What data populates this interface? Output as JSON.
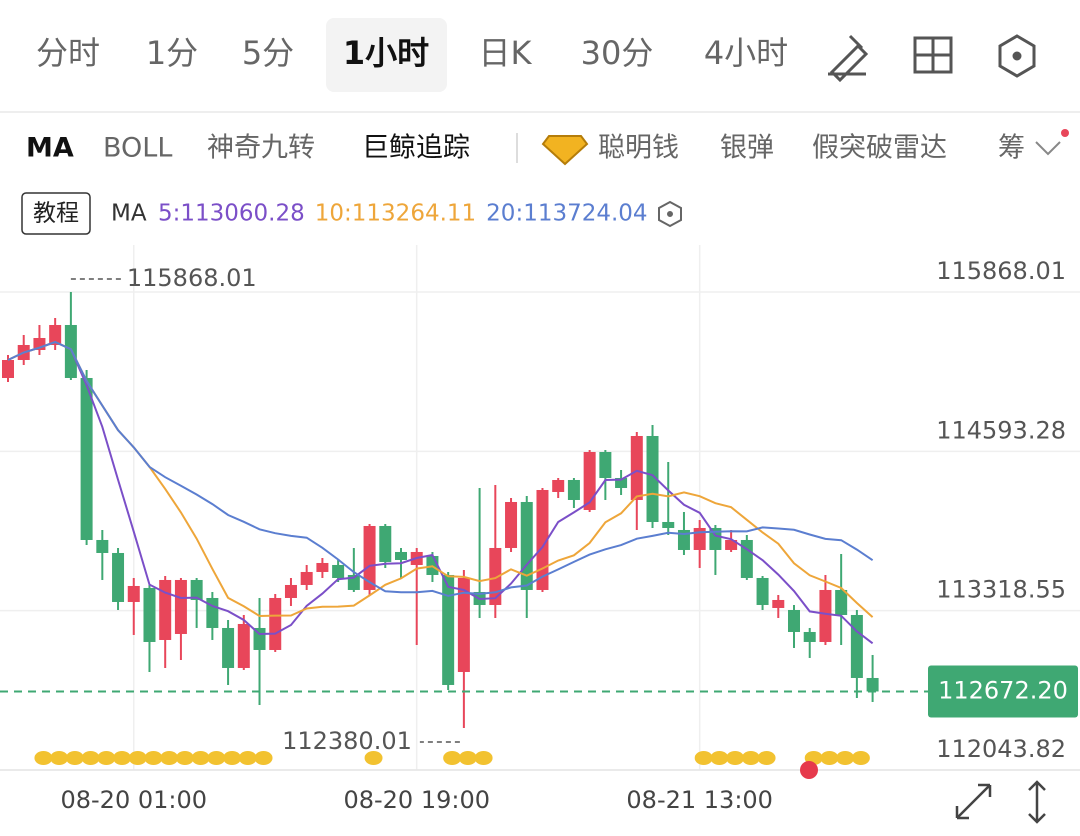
{
  "tabs": [
    "分时",
    "1分",
    "5分",
    "1小时",
    "日K",
    "30分",
    "4小时"
  ],
  "indicators": [
    "MA",
    "BOLL",
    "神奇九转",
    "巨鲸追踪",
    "聪明钱",
    "银弹",
    "假突破雷达",
    "筹"
  ],
  "tutorial": "教程",
  "ma_label": "MA",
  "ma": [
    {
      "text": "5:113060.28",
      "period": 5,
      "color": "#7b4fc8"
    },
    {
      "text": "10:113264.11",
      "period": 10,
      "color": "#eea63a"
    },
    {
      "text": "20:113724.04",
      "period": 20,
      "color": "#5b7ed0"
    }
  ],
  "chart_data": {
    "type": "candlestick",
    "categories": [
      null,
      null,
      null,
      null,
      null,
      null,
      null,
      null,
      "08-20 01:00",
      null,
      null,
      null,
      null,
      null,
      null,
      null,
      null,
      null,
      null,
      null,
      null,
      null,
      null,
      null,
      null,
      null,
      "08-20 19:00",
      null,
      null,
      null,
      null,
      null,
      null,
      null,
      null,
      null,
      null,
      null,
      null,
      null,
      null,
      null,
      null,
      null,
      "08-21 13:00",
      null,
      null,
      null,
      null,
      null,
      null,
      null,
      null,
      null,
      null,
      null
    ],
    "open": [
      115180,
      115324,
      115404,
      115444,
      115604,
      115180,
      113884,
      113780,
      113388,
      113500,
      113084,
      113132,
      113564,
      113420,
      113180,
      112860,
      113180,
      113004,
      113420,
      113524,
      113628,
      113684,
      113604,
      113484,
      113996,
      113788,
      113684,
      113756,
      113604,
      112828,
      113468,
      113364,
      113820,
      114188,
      113484,
      114268,
      114364,
      114124,
      114588,
      114380,
      114204,
      114716,
      114028,
      113964,
      113804,
      113980,
      113804,
      113884,
      113580,
      113340,
      113324,
      113148,
      113068,
      113484,
      113284,
      112780
    ],
    "high": [
      115364,
      115524,
      115604,
      115660,
      115868.01,
      115244,
      113964,
      113820,
      113580,
      113524,
      113596,
      113580,
      113580,
      113468,
      113244,
      113284,
      113420,
      113452,
      113580,
      113684,
      113740,
      113724,
      113820,
      114012,
      114012,
      113820,
      113820,
      113788,
      113628,
      113644,
      114300,
      114324,
      114220,
      114236,
      114300,
      114380,
      114380,
      114604,
      114604,
      114444,
      114748,
      114804,
      114508,
      114108,
      114044,
      114004,
      113964,
      113924,
      113596,
      113444,
      113364,
      113180,
      113604,
      113772,
      113324,
      112964
    ],
    "low": [
      115148,
      115284,
      115364,
      115404,
      115164,
      113844,
      113564,
      113324,
      113124,
      112828,
      112860,
      112924,
      113180,
      113084,
      112724,
      112844,
      112564,
      112988,
      113356,
      113484,
      113580,
      113548,
      113468,
      113444,
      113660,
      113580,
      113044,
      113548,
      112684,
      112380.01,
      113260,
      113260,
      113788,
      113260,
      113468,
      114220,
      114140,
      114108,
      114204,
      114244,
      113964,
      113980,
      113924,
      113764,
      113660,
      113604,
      113788,
      113564,
      113324,
      113260,
      113020,
      112940,
      113044,
      113044,
      112620,
      112588
    ],
    "close": [
      115324,
      115444,
      115500,
      115604,
      115180,
      113884,
      113780,
      113388,
      113516,
      113068,
      113564,
      113564,
      113404,
      113180,
      112860,
      113212,
      113004,
      113420,
      113524,
      113628,
      113700,
      113580,
      113484,
      113996,
      113708,
      113724,
      113788,
      113604,
      112724,
      113580,
      113364,
      113820,
      114188,
      113484,
      114284,
      114364,
      114204,
      114588,
      114380,
      114300,
      114716,
      114028,
      113980,
      113804,
      113980,
      113804,
      113884,
      113580,
      113364,
      113404,
      113148,
      113068,
      113484,
      113284,
      112780,
      112672.2
    ],
    "up_color": "#e8465a",
    "down_color": "#3fa873",
    "ylim": [
      112043.82,
      116244
    ],
    "yticks": [
      115868.01,
      114593.28,
      113318.55,
      112043.82
    ],
    "last_price": {
      "value": 112672.2,
      "label": "112672.20"
    },
    "high_label": 115868.01,
    "low_label": 112380.01,
    "grid": true
  }
}
